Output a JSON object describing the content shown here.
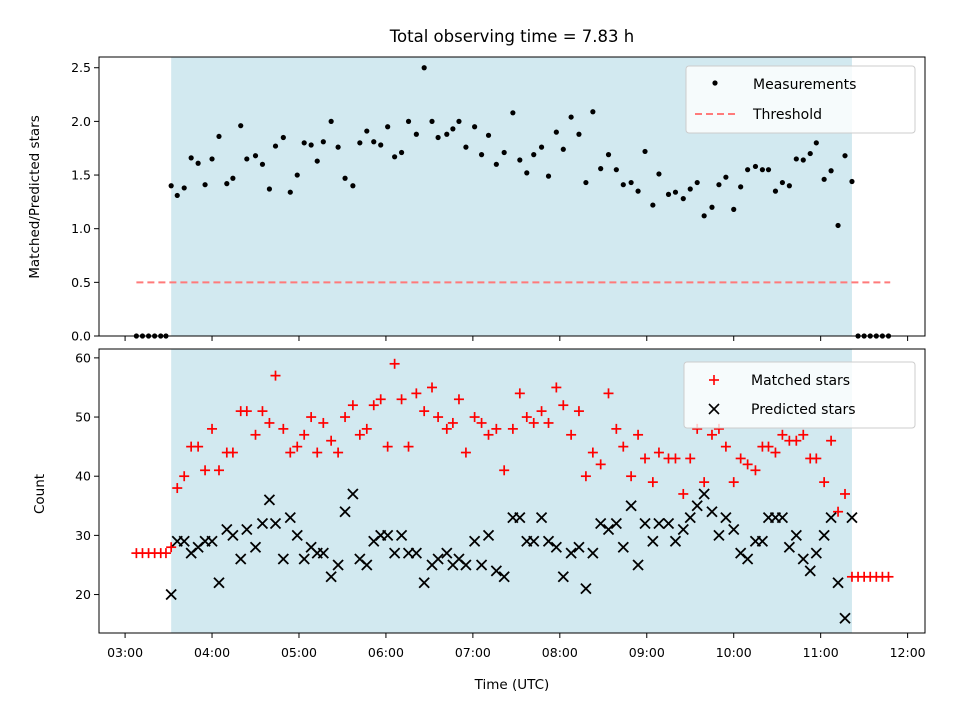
{
  "chart_data": [
    {
      "type": "scatter",
      "title": "Total observing time = 7.83 h",
      "xlabel": "",
      "ylabel": "Matched/Predicted stars",
      "ylim": [
        0,
        2.6
      ],
      "yticks": [
        "0.0",
        "0.5",
        "1.0",
        "1.5",
        "2.0",
        "2.5"
      ],
      "xlim_hours": [
        2.7,
        12.2
      ],
      "shaded_span_hours": [
        3.53,
        11.36
      ],
      "shade_color": "#d2e9f0",
      "legend_position": "upper right",
      "legend": {
        "measurements": "Measurements",
        "threshold": "Threshold"
      },
      "threshold": {
        "value": 0.5,
        "x_range_hours": [
          3.13,
          11.8
        ],
        "color": "#ff7a7a"
      },
      "series": [
        {
          "name": "Measurements",
          "color": "#000000",
          "x": [
            3.13,
            3.2,
            3.27,
            3.34,
            3.41,
            3.47,
            3.53,
            3.6,
            3.68,
            3.76,
            3.84,
            3.92,
            4.0,
            4.08,
            4.17,
            4.24,
            4.33,
            4.4,
            4.5,
            4.58,
            4.66,
            4.73,
            4.82,
            4.9,
            4.98,
            5.06,
            5.14,
            5.21,
            5.28,
            5.37,
            5.45,
            5.53,
            5.62,
            5.7,
            5.78,
            5.86,
            5.94,
            6.02,
            6.1,
            6.18,
            6.26,
            6.35,
            6.44,
            6.53,
            6.6,
            6.7,
            6.77,
            6.84,
            6.92,
            7.02,
            7.1,
            7.18,
            7.27,
            7.36,
            7.46,
            7.54,
            7.62,
            7.7,
            7.79,
            7.87,
            7.96,
            8.04,
            8.13,
            8.22,
            8.3,
            8.38,
            8.47,
            8.56,
            8.65,
            8.73,
            8.82,
            8.9,
            8.98,
            9.07,
            9.14,
            9.25,
            9.33,
            9.42,
            9.5,
            9.58,
            9.66,
            9.75,
            9.83,
            9.91,
            10.0,
            10.08,
            10.16,
            10.25,
            10.33,
            10.4,
            10.48,
            10.56,
            10.64,
            10.72,
            10.8,
            10.88,
            10.95,
            11.04,
            11.12,
            11.2,
            11.28,
            11.36,
            11.43,
            11.5,
            11.57,
            11.64,
            11.71,
            11.78
          ],
          "y": [
            0,
            0,
            0,
            0,
            0,
            0,
            1.4,
            1.31,
            1.38,
            1.66,
            1.61,
            1.41,
            1.65,
            1.86,
            1.42,
            1.47,
            1.96,
            1.65,
            1.68,
            1.6,
            1.37,
            1.77,
            1.85,
            1.34,
            1.5,
            1.8,
            1.78,
            1.63,
            1.81,
            2.0,
            1.76,
            1.47,
            1.4,
            1.8,
            1.91,
            1.81,
            1.78,
            1.95,
            1.67,
            1.71,
            2.0,
            1.88,
            2.5,
            2.0,
            1.85,
            1.88,
            1.93,
            2.0,
            1.76,
            1.95,
            1.69,
            1.87,
            1.6,
            1.71,
            2.08,
            1.64,
            1.52,
            1.69,
            1.76,
            1.49,
            1.9,
            1.74,
            2.04,
            1.88,
            1.43,
            2.09,
            1.56,
            1.69,
            1.55,
            1.41,
            1.43,
            1.35,
            1.72,
            1.22,
            1.51,
            1.32,
            1.34,
            1.28,
            1.37,
            1.43,
            1.12,
            1.2,
            1.41,
            1.48,
            1.18,
            1.39,
            1.55,
            1.58,
            1.55,
            1.55,
            1.35,
            1.43,
            1.4,
            1.65,
            1.64,
            1.7,
            1.8,
            1.46,
            1.54,
            1.03,
            1.68,
            1.44,
            0,
            0,
            0,
            0,
            0,
            0
          ]
        }
      ]
    },
    {
      "type": "scatter",
      "title": "",
      "xlabel": "Time (UTC)",
      "ylabel": "Count",
      "ylim": [
        13.5,
        61.5
      ],
      "yticks": [
        "20",
        "30",
        "40",
        "50",
        "60"
      ],
      "xticks": [
        "03:00",
        "04:00",
        "05:00",
        "06:00",
        "07:00",
        "08:00",
        "09:00",
        "10:00",
        "11:00",
        "12:00"
      ],
      "xlim_hours": [
        2.7,
        12.2
      ],
      "shaded_span_hours": [
        3.53,
        11.36
      ],
      "shade_color": "#d2e9f0",
      "legend_position": "upper right",
      "legend": {
        "matched": "Matched stars",
        "predicted": "Predicted stars"
      },
      "series": [
        {
          "name": "Matched stars",
          "marker": "+",
          "color": "#ff0000",
          "x": [
            3.13,
            3.2,
            3.27,
            3.34,
            3.41,
            3.47,
            3.53,
            3.6,
            3.68,
            3.76,
            3.84,
            3.92,
            4.0,
            4.08,
            4.17,
            4.24,
            4.33,
            4.4,
            4.5,
            4.58,
            4.66,
            4.73,
            4.82,
            4.9,
            4.98,
            5.06,
            5.14,
            5.21,
            5.28,
            5.37,
            5.45,
            5.53,
            5.62,
            5.7,
            5.78,
            5.86,
            5.94,
            6.02,
            6.1,
            6.18,
            6.26,
            6.35,
            6.44,
            6.53,
            6.6,
            6.7,
            6.77,
            6.84,
            6.92,
            7.02,
            7.1,
            7.18,
            7.27,
            7.36,
            7.46,
            7.54,
            7.62,
            7.7,
            7.79,
            7.87,
            7.96,
            8.04,
            8.13,
            8.22,
            8.3,
            8.38,
            8.47,
            8.56,
            8.65,
            8.73,
            8.82,
            8.9,
            8.98,
            9.07,
            9.14,
            9.25,
            9.33,
            9.42,
            9.5,
            9.58,
            9.66,
            9.75,
            9.83,
            9.91,
            10.0,
            10.08,
            10.16,
            10.25,
            10.33,
            10.4,
            10.48,
            10.56,
            10.64,
            10.72,
            10.8,
            10.88,
            10.95,
            11.04,
            11.12,
            11.2,
            11.28,
            11.36,
            11.43,
            11.5,
            11.57,
            11.64,
            11.71,
            11.78
          ],
          "y": [
            27,
            27,
            27,
            27,
            27,
            27,
            28,
            38,
            40,
            45,
            45,
            41,
            48,
            41,
            44,
            44,
            51,
            51,
            47,
            51,
            49,
            57,
            48,
            44,
            45,
            47,
            50,
            44,
            49,
            46,
            44,
            50,
            52,
            47,
            48,
            52,
            53,
            45,
            59,
            53,
            45,
            54,
            51,
            55,
            50,
            48,
            49,
            53,
            44,
            50,
            49,
            47,
            48,
            41,
            48,
            54,
            50,
            49,
            51,
            49,
            55,
            52,
            47,
            51,
            40,
            44,
            42,
            54,
            48,
            45,
            40,
            47,
            43,
            39,
            44,
            43,
            43,
            37,
            43,
            48,
            39,
            47,
            48,
            45,
            39,
            43,
            42,
            41,
            45,
            45,
            44,
            47,
            46,
            46,
            47,
            43,
            43,
            39,
            46,
            34,
            37,
            23,
            23,
            23,
            23,
            23,
            23,
            23
          ]
        },
        {
          "name": "Predicted stars",
          "marker": "x",
          "color": "#000000",
          "x": [
            3.53,
            3.6,
            3.68,
            3.76,
            3.84,
            3.92,
            4.0,
            4.08,
            4.17,
            4.24,
            4.33,
            4.4,
            4.5,
            4.58,
            4.66,
            4.73,
            4.82,
            4.9,
            4.98,
            5.06,
            5.14,
            5.21,
            5.28,
            5.37,
            5.45,
            5.53,
            5.62,
            5.7,
            5.78,
            5.86,
            5.94,
            6.02,
            6.1,
            6.18,
            6.26,
            6.35,
            6.44,
            6.53,
            6.6,
            6.7,
            6.77,
            6.84,
            6.92,
            7.02,
            7.1,
            7.18,
            7.27,
            7.36,
            7.46,
            7.54,
            7.62,
            7.7,
            7.79,
            7.87,
            7.96,
            8.04,
            8.13,
            8.22,
            8.3,
            8.38,
            8.47,
            8.56,
            8.65,
            8.73,
            8.82,
            8.9,
            8.98,
            9.07,
            9.14,
            9.25,
            9.33,
            9.42,
            9.5,
            9.58,
            9.66,
            9.75,
            9.83,
            9.91,
            10.0,
            10.08,
            10.16,
            10.25,
            10.33,
            10.4,
            10.48,
            10.56,
            10.64,
            10.72,
            10.8,
            10.88,
            10.95,
            11.04,
            11.12,
            11.2,
            11.28,
            11.36
          ],
          "y": [
            20,
            29,
            29,
            27,
            28,
            29,
            29,
            22,
            31,
            30,
            26,
            31,
            28,
            32,
            36,
            32,
            26,
            33,
            30,
            26,
            28,
            27,
            27,
            23,
            25,
            34,
            37,
            26,
            25,
            29,
            30,
            30,
            27,
            30,
            27,
            27,
            22,
            25,
            26,
            27,
            25,
            26,
            25,
            29,
            25,
            30,
            24,
            23,
            33,
            33,
            29,
            29,
            33,
            29,
            28,
            23,
            27,
            28,
            21,
            27,
            32,
            31,
            32,
            28,
            35,
            25,
            32,
            29,
            32,
            32,
            29,
            31,
            33,
            35,
            37,
            34,
            30,
            33,
            31,
            27,
            26,
            29,
            29,
            33,
            33,
            33,
            28,
            30,
            26,
            24,
            27,
            30,
            33,
            22,
            16,
            33
          ]
        }
      ]
    }
  ]
}
